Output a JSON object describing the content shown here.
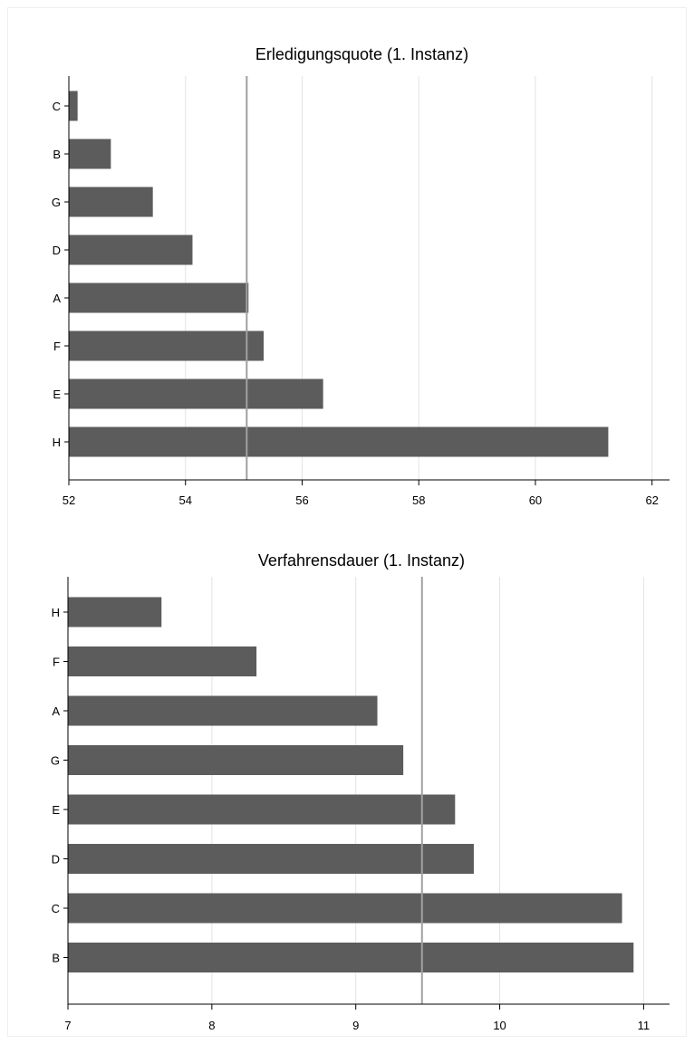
{
  "colors": {
    "bar": "#5c5c5c",
    "grid": "#e3e3e3",
    "refline": "#a0a0a0",
    "axis": "#000000"
  },
  "chart_data": [
    {
      "type": "bar",
      "orientation": "horizontal",
      "title": "Erledigungsquote (1. Instanz)",
      "categories": [
        "C",
        "B",
        "G",
        "D",
        "A",
        "F",
        "E",
        "H"
      ],
      "values": [
        52.15,
        52.72,
        53.44,
        54.12,
        55.08,
        55.34,
        56.36,
        61.25
      ],
      "xlim": [
        52,
        62.3
      ],
      "xticks": [
        52,
        54,
        56,
        58,
        60,
        62
      ],
      "xtick_labels": [
        "52",
        "54",
        "56",
        "58",
        "60",
        "62"
      ],
      "reference_line": 55.05,
      "grid": true
    },
    {
      "type": "bar",
      "orientation": "horizontal",
      "title": "Verfahrensdauer (1. Instanz)",
      "categories": [
        "H",
        "F",
        "A",
        "G",
        "E",
        "D",
        "C",
        "B"
      ],
      "values": [
        7.65,
        8.31,
        9.15,
        9.33,
        9.69,
        9.82,
        10.85,
        10.93
      ],
      "xlim": [
        7,
        11.18
      ],
      "xticks": [
        7,
        8,
        9,
        10,
        11
      ],
      "xtick_labels": [
        "7",
        "8",
        "9",
        "10",
        "11"
      ],
      "reference_line": 9.46,
      "grid": true
    }
  ]
}
